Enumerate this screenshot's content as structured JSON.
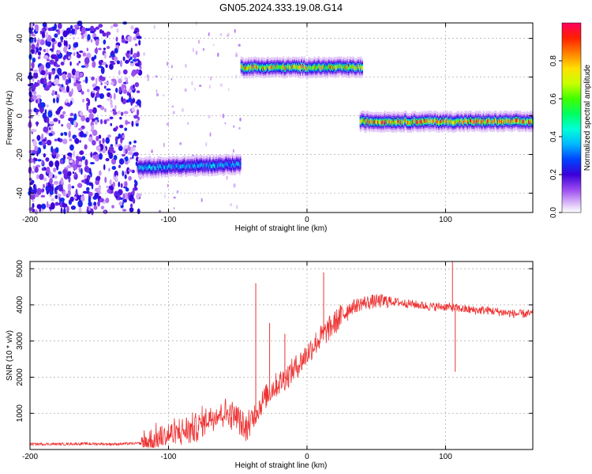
{
  "figure": {
    "title": "GN05.2024.333.19.08.G14"
  },
  "chart_data": [
    {
      "type": "heatmap",
      "xlabel": "Height of straight line (km)",
      "ylabel": "Frequency (Hz)",
      "xlim": [
        -200,
        163
      ],
      "ylim": [
        -50,
        48
      ],
      "xticks": [
        -200,
        -100,
        0,
        100
      ],
      "yticks": [
        -40,
        -20,
        0,
        20,
        40
      ],
      "colorbar": {
        "label": "Normalized spectral amplitude",
        "range": [
          0,
          1
        ],
        "ticks": [
          0.0,
          0.2,
          0.4,
          0.6,
          0.8
        ],
        "colormap": "rainbow"
      },
      "features": [
        {
          "name": "noise",
          "x_range": [
            -200,
            -120
          ],
          "freq_range": [
            -50,
            48
          ],
          "amplitude": 0.1
        },
        {
          "name": "segment-1",
          "x_range": [
            -122,
            -48
          ],
          "freq_start": -27,
          "freq_end": -25,
          "amplitude_peak": 0.45
        },
        {
          "name": "segment-2",
          "x_range": [
            -48,
            40
          ],
          "freq_start": 25,
          "freq_end": 25,
          "amplitude_peak": 0.9
        },
        {
          "name": "segment-3",
          "x_range": [
            38,
            163
          ],
          "freq_start": -3,
          "freq_end": -3,
          "amplitude_peak": 1.0
        }
      ],
      "grid": true
    },
    {
      "type": "line",
      "xlabel": "Height of straight line (km)",
      "ylabel": "SNR (10 * v/v)",
      "xlim": [
        -200,
        163
      ],
      "ylim": [
        0,
        5200
      ],
      "xticks": [
        -200,
        -100,
        0,
        100
      ],
      "yticks": [
        1000,
        2000,
        3000,
        4000,
        5000
      ],
      "color": "#ee3333",
      "grid": true,
      "series": [
        {
          "values": [
            [
              -200,
              150
            ],
            [
              -180,
              150
            ],
            [
              -160,
              160
            ],
            [
              -140,
              150
            ],
            [
              -120,
              170
            ],
            [
              -110,
              250
            ],
            [
              -100,
              400
            ],
            [
              -90,
              500
            ],
            [
              -80,
              600
            ],
            [
              -70,
              900
            ],
            [
              -60,
              1050
            ],
            [
              -50,
              900
            ],
            [
              -45,
              500
            ],
            [
              -40,
              850
            ],
            [
              -35,
              1150
            ],
            [
              -30,
              1450
            ],
            [
              -25,
              1700
            ],
            [
              -20,
              1850
            ],
            [
              -15,
              2000
            ],
            [
              -10,
              2200
            ],
            [
              -5,
              2400
            ],
            [
              0,
              2650
            ],
            [
              5,
              2900
            ],
            [
              10,
              3100
            ],
            [
              15,
              3300
            ],
            [
              20,
              3500
            ],
            [
              25,
              3700
            ],
            [
              30,
              3900
            ],
            [
              40,
              4050
            ],
            [
              50,
              4100
            ],
            [
              60,
              4100
            ],
            [
              70,
              4050
            ],
            [
              80,
              4000
            ],
            [
              90,
              3950
            ],
            [
              100,
              3950
            ],
            [
              110,
              3900
            ],
            [
              120,
              3850
            ],
            [
              130,
              3850
            ],
            [
              140,
              3800
            ],
            [
              150,
              3750
            ],
            [
              163,
              3750
            ]
          ],
          "spikes": [
            [
              -37,
              4600
            ],
            [
              -27,
              3500
            ],
            [
              -16,
              3200
            ],
            [
              12,
              4900
            ],
            [
              105,
              5200
            ],
            [
              107,
              2150
            ]
          ]
        }
      ]
    }
  ]
}
